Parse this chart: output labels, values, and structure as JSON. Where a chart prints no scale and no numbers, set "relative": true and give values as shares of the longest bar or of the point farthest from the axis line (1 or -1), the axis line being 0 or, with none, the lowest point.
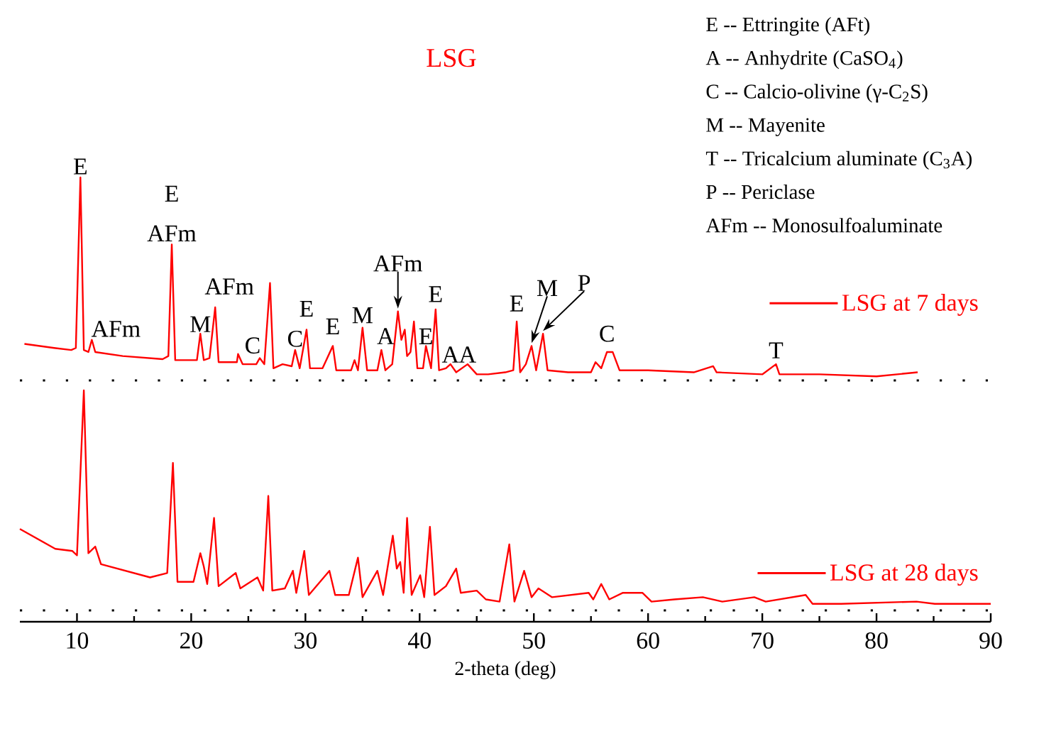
{
  "chart_data": [
    {
      "type": "line",
      "relative": true,
      "title": "LSG",
      "xlim": [
        5,
        90
      ],
      "tick_labels": false,
      "legend": "right",
      "x": [
        5.4,
        8,
        9.5,
        9.9,
        10.3,
        10.6,
        11.0,
        11.3,
        11.6,
        14,
        17.5,
        18.0,
        18.3,
        18.6,
        20.5,
        20.8,
        21.1,
        21.6,
        22.1,
        22.4,
        24,
        24.1,
        24.5,
        25.7,
        26.0,
        26.4,
        26.9,
        27.2,
        28,
        28.8,
        29.1,
        29.5,
        30.1,
        30.4,
        31.5,
        32.4,
        32.7,
        34,
        34.3,
        34.6,
        35.0,
        35.4,
        36.3,
        36.65,
        37.0,
        37.6,
        38.1,
        38.4,
        38.7,
        38.9,
        39.2,
        39.5,
        39.8,
        40.3,
        40.55,
        41.0,
        41.4,
        41.7,
        42.3,
        42.7,
        43.2,
        44.2,
        45,
        46,
        47.5,
        48.2,
        48.5,
        48.8,
        49.3,
        49.8,
        50.2,
        50.8,
        51.2,
        53,
        55,
        55.4,
        55.9,
        56.4,
        56.9,
        57.5,
        60,
        64,
        65.7,
        66,
        70,
        71.2,
        71.5,
        75,
        80,
        83.6
      ],
      "series": [
        {
          "name": "LSG at 7 days",
          "color": "#ff0000",
          "values": [
            0.18,
            0.16,
            0.15,
            0.16,
            1.0,
            0.15,
            0.14,
            0.2,
            0.14,
            0.12,
            0.105,
            0.12,
            0.67,
            0.1,
            0.1,
            0.23,
            0.1,
            0.11,
            0.36,
            0.09,
            0.09,
            0.13,
            0.08,
            0.08,
            0.11,
            0.08,
            0.48,
            0.06,
            0.08,
            0.07,
            0.15,
            0.06,
            0.25,
            0.06,
            0.06,
            0.17,
            0.05,
            0.05,
            0.1,
            0.05,
            0.26,
            0.05,
            0.05,
            0.15,
            0.05,
            0.08,
            0.34,
            0.2,
            0.25,
            0.12,
            0.14,
            0.29,
            0.06,
            0.06,
            0.17,
            0.06,
            0.35,
            0.05,
            0.06,
            0.08,
            0.04,
            0.08,
            0.03,
            0.03,
            0.04,
            0.05,
            0.29,
            0.04,
            0.08,
            0.17,
            0.05,
            0.23,
            0.05,
            0.04,
            0.04,
            0.09,
            0.06,
            0.14,
            0.14,
            0.05,
            0.05,
            0.04,
            0.07,
            0.04,
            0.03,
            0.08,
            0.03,
            0.03,
            0.02,
            0.04
          ]
        }
      ],
      "annotations": [
        "E -- Ettringite (AFt)",
        "A -- Anhydrite (CaSO$_{4}$)",
        "C -- Calcio-olivine (γ-C$_{2}$S)",
        "M -- Mayenite",
        "T -- Tricalcium aluminate (C$_{3}$A)",
        "P -- Periclase",
        "AFm -- Monosulfoaluminate",
        {
          "text": "E",
          "x": 10.3,
          "y": 1.0
        },
        {
          "text": "AFm",
          "x": 11.3,
          "y": 0.2
        },
        {
          "text": "E",
          "x": 18.3,
          "y": 0.67
        },
        {
          "text": "AFm",
          "x": 18.3,
          "y": 0.67
        },
        {
          "text": "M",
          "x": 20.8,
          "y": 0.23
        },
        {
          "text": "AFm",
          "x": 22.1,
          "y": 0.36
        },
        {
          "text": "C",
          "x": 26.0,
          "y": 0.11
        },
        {
          "text": "C",
          "x": 29.1,
          "y": 0.15
        },
        {
          "text": "E",
          "x": 30.1,
          "y": 0.25
        },
        {
          "text": "E",
          "x": 32.4,
          "y": 0.17
        },
        {
          "text": "M",
          "x": 35.0,
          "y": 0.26
        },
        {
          "text": "A",
          "x": 36.65,
          "y": 0.15
        },
        {
          "text": "AFm",
          "x": 38.1,
          "y": 0.34
        },
        {
          "text": "E",
          "x": 40.55,
          "y": 0.17
        },
        {
          "text": "E",
          "x": 41.4,
          "y": 0.35
        },
        {
          "text": "A",
          "x": 42.7,
          "y": 0.08
        },
        {
          "text": "A",
          "x": 44.2,
          "y": 0.08
        },
        {
          "text": "E",
          "x": 48.5,
          "y": 0.29
        },
        {
          "text": "M",
          "x": 49.8,
          "y": 0.17
        },
        {
          "text": "P",
          "x": 50.8,
          "y": 0.23
        },
        {
          "text": "C",
          "x": 56.4,
          "y": 0.14
        },
        {
          "text": "T",
          "x": 71.2,
          "y": 0.08
        }
      ]
    },
    {
      "type": "line",
      "relative": true,
      "xlabel": "2-theta (deg)",
      "xlim": [
        5,
        90
      ],
      "xticks": [
        10,
        20,
        30,
        40,
        50,
        60,
        70,
        80,
        90
      ],
      "tick_labels": "x",
      "legend": "bottom right",
      "x": [
        5.0,
        8.1,
        9.6,
        10.0,
        10.6,
        11.0,
        11.6,
        12.1,
        16.4,
        17.9,
        18.4,
        18.8,
        20.2,
        20.8,
        21.1,
        21.4,
        22.0,
        22.4,
        23.9,
        24.3,
        25.8,
        26.3,
        26.75,
        27.1,
        28.2,
        28.9,
        29.2,
        29.9,
        30.3,
        32.1,
        32.6,
        33.8,
        34.6,
        35.0,
        36.3,
        36.8,
        37.65,
        38.0,
        38.3,
        38.6,
        38.9,
        39.3,
        40.05,
        40.4,
        40.9,
        41.3,
        42.3,
        43.2,
        43.6,
        45.0,
        45.8,
        47.0,
        47.85,
        48.3,
        49.15,
        49.8,
        50.4,
        51.6,
        54.8,
        55.2,
        55.9,
        56.6,
        57.8,
        59.5,
        60.3,
        62.3,
        64.8,
        66.5,
        69.3,
        70.3,
        73.8,
        74.4,
        76.9,
        83.5,
        85.1,
        90
      ],
      "series": [
        {
          "name": "LSG at 28 days",
          "color": "#ff0000",
          "values": [
            0.37,
            0.28,
            0.27,
            0.25,
            1.0,
            0.26,
            0.29,
            0.21,
            0.15,
            0.17,
            0.67,
            0.13,
            0.13,
            0.26,
            0.2,
            0.12,
            0.42,
            0.11,
            0.17,
            0.1,
            0.15,
            0.09,
            0.52,
            0.09,
            0.1,
            0.18,
            0.08,
            0.27,
            0.07,
            0.18,
            0.07,
            0.07,
            0.24,
            0.06,
            0.18,
            0.07,
            0.34,
            0.19,
            0.22,
            0.08,
            0.42,
            0.07,
            0.16,
            0.06,
            0.38,
            0.07,
            0.11,
            0.19,
            0.08,
            0.09,
            0.05,
            0.04,
            0.3,
            0.04,
            0.18,
            0.06,
            0.1,
            0.06,
            0.08,
            0.05,
            0.12,
            0.05,
            0.08,
            0.08,
            0.04,
            0.05,
            0.06,
            0.04,
            0.06,
            0.04,
            0.07,
            0.03,
            0.03,
            0.04,
            0.03,
            0.03
          ]
        }
      ]
    }
  ]
}
